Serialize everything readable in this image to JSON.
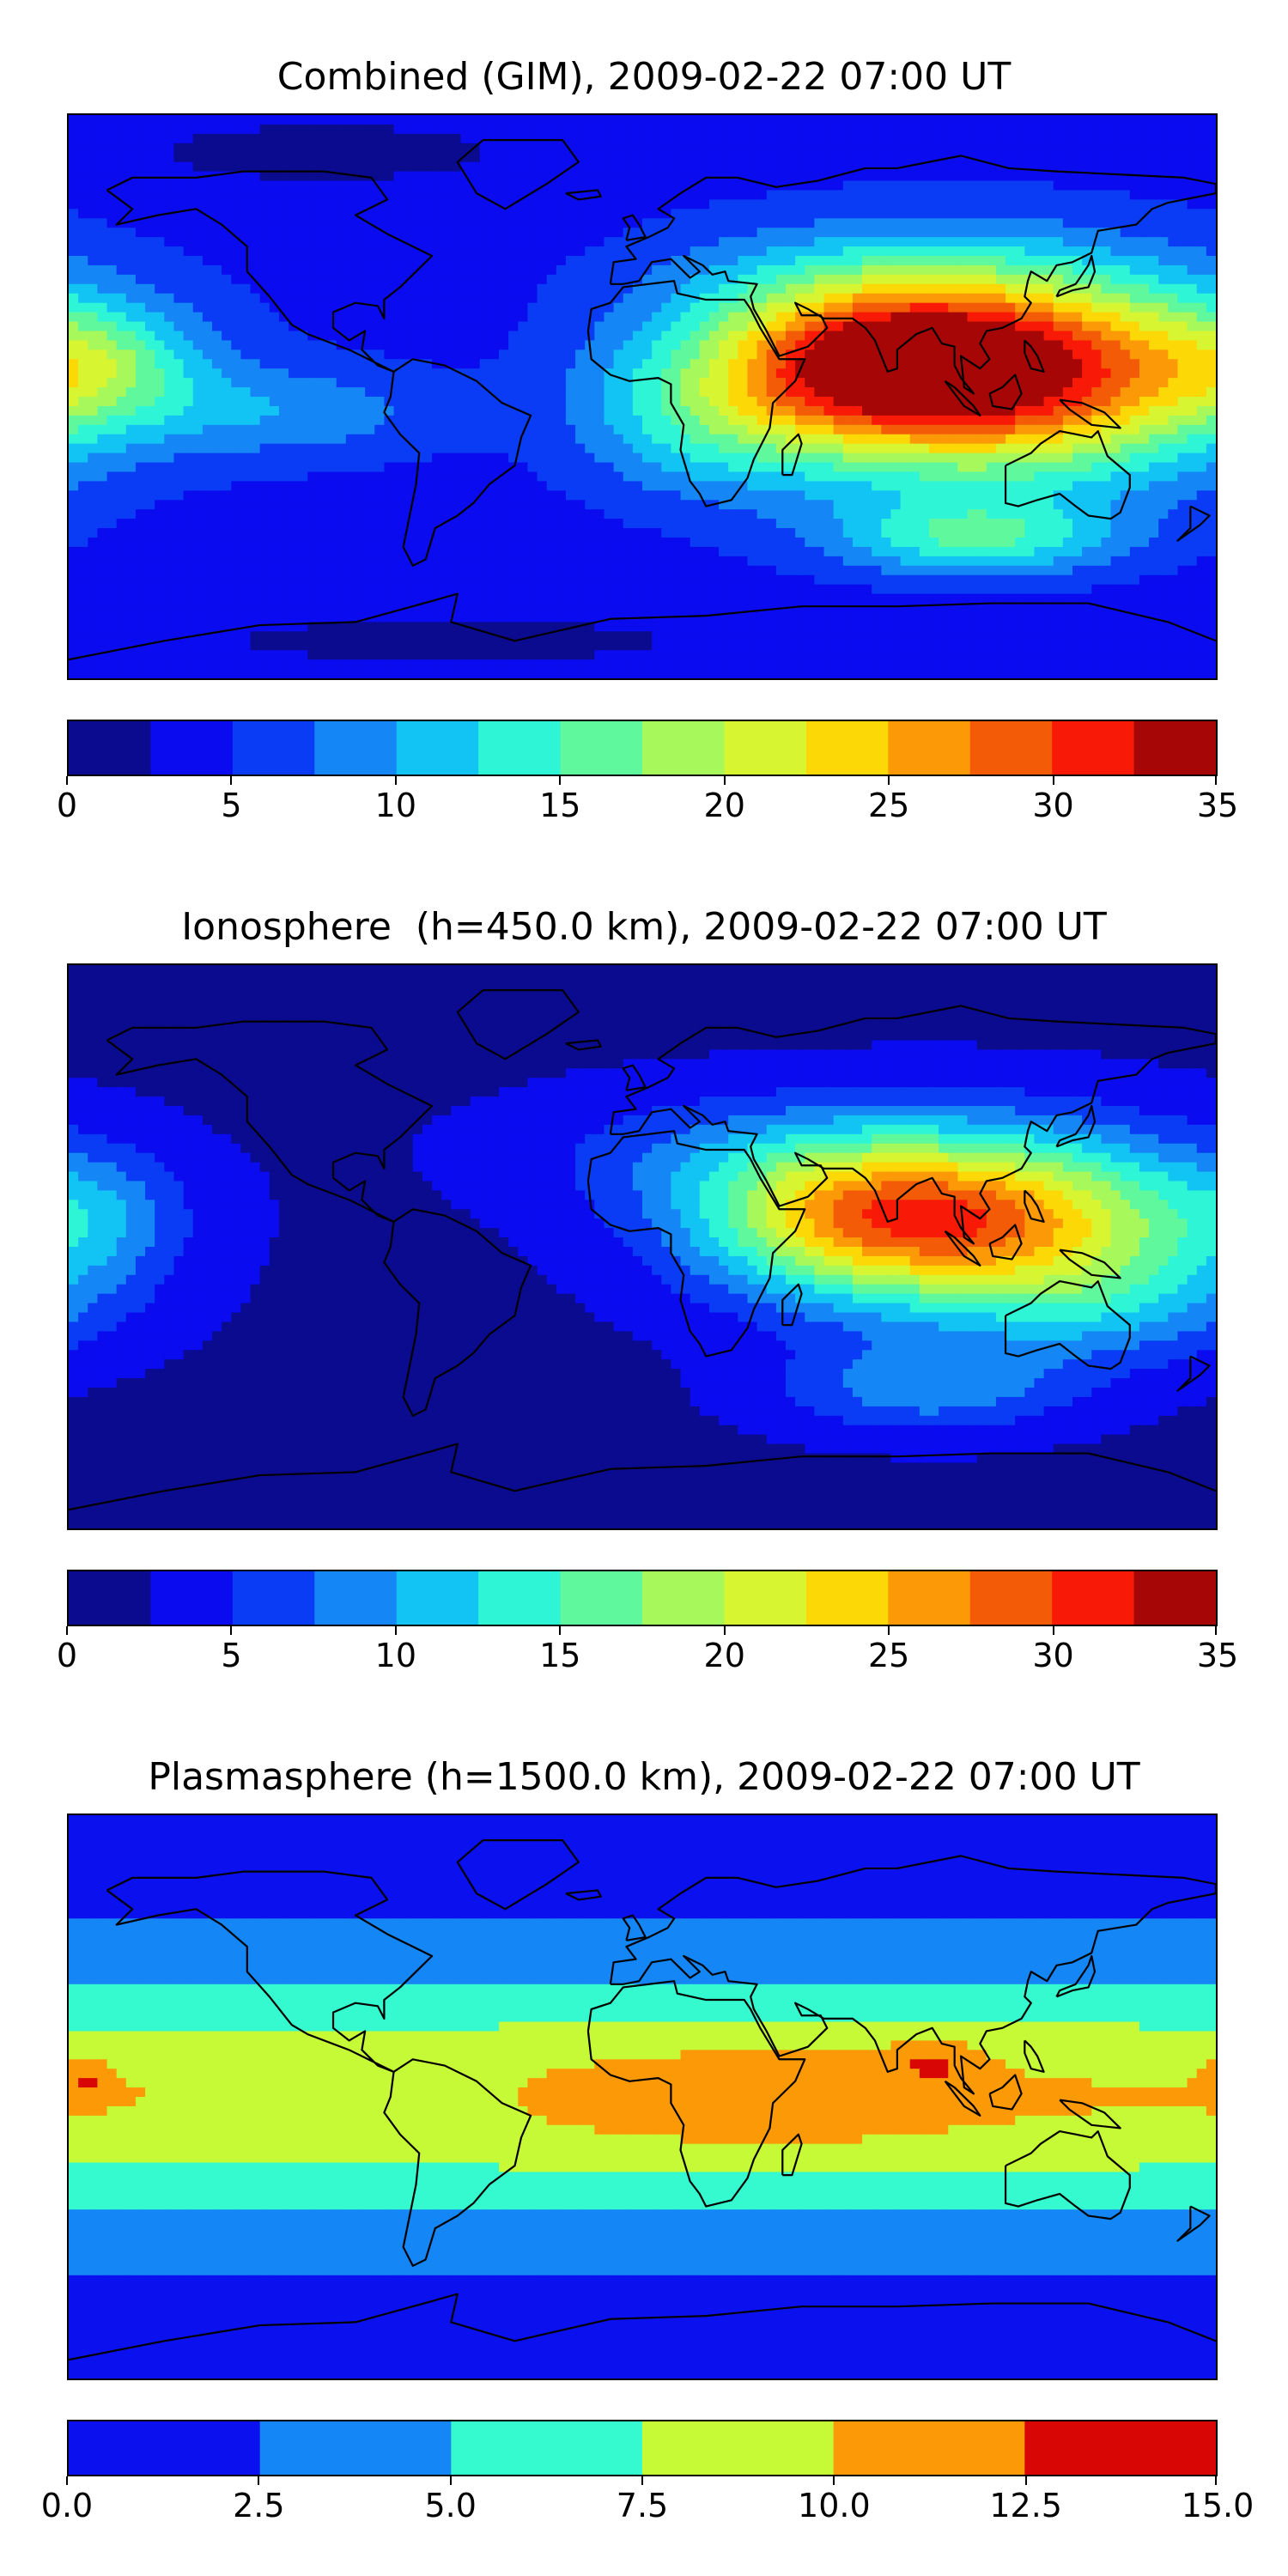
{
  "chart_data": [
    {
      "type": "heatmap",
      "title": "Combined (GIM), 2009-02-22 07:00 UT",
      "xlabel": "",
      "ylabel": "",
      "colorbar": {
        "boundaries": [
          0,
          2.5,
          5,
          7.5,
          10,
          12.5,
          15,
          17.5,
          20,
          22.5,
          25,
          27.5,
          30,
          32.5,
          35
        ],
        "tick_values": [
          0,
          5,
          10,
          15,
          20,
          25,
          30,
          35
        ],
        "tick_labels": [
          "0",
          "5",
          "10",
          "15",
          "20",
          "25",
          "30",
          "35"
        ],
        "colors": [
          "#0b0b8f",
          "#0b0bf0",
          "#0a3cf5",
          "#1486f5",
          "#12c4f4",
          "#2ef5d6",
          "#5ff89d",
          "#a7f85a",
          "#d8f532",
          "#fcd807",
          "#fc9906",
          "#f45b06",
          "#f81a06",
          "#a60606"
        ]
      },
      "field": {
        "background": 4,
        "features": [
          {
            "lon": 108,
            "lat": 8,
            "rx": 75,
            "ry": 32,
            "peak": 32
          },
          {
            "lon": 70,
            "lat": 10,
            "rx": 40,
            "ry": 20,
            "peak": 10
          },
          {
            "lon": -170,
            "lat": 10,
            "rx": 30,
            "ry": 18,
            "peak": 7
          },
          {
            "lon": -110,
            "lat": -5,
            "rx": 50,
            "ry": 15,
            "peak": 5
          },
          {
            "lon": 20,
            "lat": -5,
            "rx": 40,
            "ry": 25,
            "peak": 7
          },
          {
            "lon": 105,
            "lat": -45,
            "rx": 45,
            "ry": 12,
            "peak": 10
          },
          {
            "lon": 60,
            "lat": 35,
            "rx": 60,
            "ry": 20,
            "peak": 4
          },
          {
            "lon": -100,
            "lat": 78,
            "rx": 60,
            "ry": 10,
            "peak": -3
          },
          {
            "lon": -60,
            "lat": -78,
            "rx": 120,
            "ry": 12,
            "peak": -2
          }
        ]
      }
    },
    {
      "type": "heatmap",
      "title": "Ionosphere  (h=450.0 km), 2009-02-22 07:00 UT",
      "xlabel": "",
      "ylabel": "",
      "colorbar": {
        "boundaries": [
          0,
          2.5,
          5,
          7.5,
          10,
          12.5,
          15,
          17.5,
          20,
          22.5,
          25,
          27.5,
          30,
          32.5,
          35
        ],
        "tick_values": [
          0,
          5,
          10,
          15,
          20,
          25,
          30,
          35
        ],
        "tick_labels": [
          "0",
          "5",
          "10",
          "15",
          "20",
          "25",
          "30",
          "35"
        ],
        "colors": [
          "#0b0b8f",
          "#0b0bf0",
          "#0a3cf5",
          "#1486f5",
          "#12c4f4",
          "#2ef5d6",
          "#5ff89d",
          "#a7f85a",
          "#d8f532",
          "#fcd807",
          "#fc9906",
          "#f45b06",
          "#f81a06",
          "#a60606"
        ]
      },
      "field": {
        "background": 2,
        "features": [
          {
            "lon": 105,
            "lat": 8,
            "rx": 70,
            "ry": 28,
            "peak": 25
          },
          {
            "lon": 60,
            "lat": 10,
            "rx": 45,
            "ry": 22,
            "peak": 8
          },
          {
            "lon": 150,
            "lat": -20,
            "rx": 45,
            "ry": 18,
            "peak": 5
          },
          {
            "lon": 90,
            "lat": -45,
            "rx": 45,
            "ry": 14,
            "peak": 7
          },
          {
            "lon": 30,
            "lat": 30,
            "rx": 70,
            "ry": 20,
            "peak": 4
          },
          {
            "lon": -170,
            "lat": 10,
            "rx": 25,
            "ry": 20,
            "peak": 4
          }
        ]
      }
    },
    {
      "type": "heatmap",
      "title": "Plasmasphere (h=1500.0 km), 2009-02-22 07:00 UT",
      "xlabel": "",
      "ylabel": "",
      "colorbar": {
        "boundaries": [
          0,
          2.5,
          5,
          7.5,
          10,
          12.5,
          15
        ],
        "tick_values": [
          0,
          2.5,
          5,
          7.5,
          10,
          12.5,
          15
        ],
        "tick_labels": [
          "0.0",
          "2.5",
          "5.0",
          "7.5",
          "10.0",
          "12.5",
          "15.0"
        ],
        "colors": [
          "#0b10ee",
          "#1486f5",
          "#35fad0",
          "#c6f936",
          "#fc9906",
          "#d90606"
        ]
      },
      "field": {
        "background": 1.5,
        "band": {
          "center_lat": 0,
          "width": 38,
          "peak": 8.5
        },
        "features": [
          {
            "lon": -175,
            "lat": 5,
            "rx": 8,
            "ry": 6,
            "peak": 3
          },
          {
            "lon": 92,
            "lat": 12,
            "rx": 14,
            "ry": 8,
            "peak": 3
          },
          {
            "lon": 40,
            "lat": 0,
            "rx": 60,
            "ry": 20,
            "peak": 2
          },
          {
            "lon": -80,
            "lat": 0,
            "rx": 30,
            "ry": 15,
            "peak": -2
          }
        ]
      }
    }
  ]
}
